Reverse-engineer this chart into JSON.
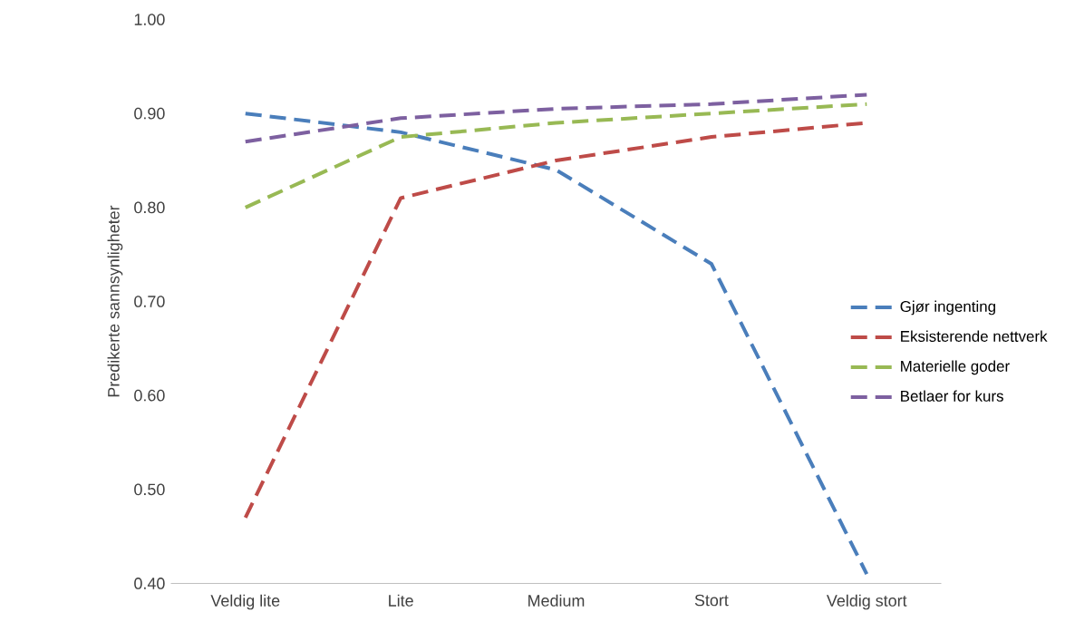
{
  "chart_data": {
    "type": "line",
    "ylabel": "Predikerte sannsynligheter",
    "categories": [
      "Veldig lite",
      "Lite",
      "Medium",
      "Stort",
      "Veldig stort"
    ],
    "series": [
      {
        "name": "Gjør ingenting",
        "color": "#4a7ebb",
        "values": [
          0.9,
          0.88,
          0.84,
          0.74,
          0.41
        ]
      },
      {
        "name": "Eksisterende nettverk",
        "color": "#be4b48",
        "values": [
          0.47,
          0.81,
          0.85,
          0.875,
          0.89
        ]
      },
      {
        "name": "Materielle goder",
        "color": "#98b954",
        "values": [
          0.8,
          0.875,
          0.89,
          0.9,
          0.91
        ]
      },
      {
        "name": "Betlaer for kurs",
        "color": "#7d60a0",
        "values": [
          0.87,
          0.895,
          0.905,
          0.91,
          0.92
        ]
      }
    ],
    "ylim": [
      0.4,
      1.0
    ],
    "yticks": [
      {
        "value": 0.4,
        "label": "0.40"
      },
      {
        "value": 0.5,
        "label": "0.50"
      },
      {
        "value": 0.6,
        "label": "0.60"
      },
      {
        "value": 0.7,
        "label": "0.70"
      },
      {
        "value": 0.8,
        "label": "0.80"
      },
      {
        "value": 0.9,
        "label": "0.90"
      },
      {
        "value": 1.0,
        "label": "1.00"
      }
    ],
    "legend": "right",
    "line_style": "dashed",
    "marker": "none",
    "grid": false
  }
}
